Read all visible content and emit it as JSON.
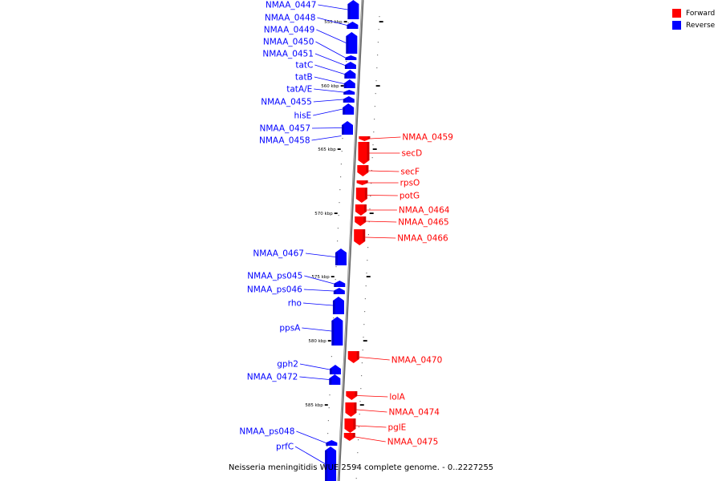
{
  "title": "Neisseria meningitidis WUE 2594 complete genome. - 0..2227255",
  "legend": [
    {
      "label": "Forward",
      "color": "#ff0000"
    },
    {
      "label": "Reverse",
      "color": "#0000ff"
    }
  ],
  "colors": {
    "forward": "#ff0000",
    "reverse": "#0000ff",
    "backbone": "#888888"
  },
  "ticks": [
    {
      "label": "555 kbp"
    },
    {
      "label": "560 kbp"
    },
    {
      "label": "565 kbp"
    },
    {
      "label": "570 kbp"
    },
    {
      "label": "575 kbp"
    },
    {
      "label": "580 kbp"
    },
    {
      "label": "585 kbp"
    }
  ],
  "genes": [
    {
      "name": "NMAA_0447",
      "strand": "reverse"
    },
    {
      "name": "NMAA_0448",
      "strand": "reverse"
    },
    {
      "name": "NMAA_0449",
      "strand": "reverse"
    },
    {
      "name": "NMAA_0450",
      "strand": "reverse"
    },
    {
      "name": "NMAA_0451",
      "strand": "reverse"
    },
    {
      "name": "tatC",
      "strand": "reverse"
    },
    {
      "name": "tatB",
      "strand": "reverse"
    },
    {
      "name": "tatA/E",
      "strand": "reverse"
    },
    {
      "name": "NMAA_0455",
      "strand": "reverse"
    },
    {
      "name": "hisE",
      "strand": "reverse"
    },
    {
      "name": "NMAA_0457",
      "strand": "reverse"
    },
    {
      "name": "NMAA_0458",
      "strand": "reverse"
    },
    {
      "name": "NMAA_0459",
      "strand": "forward"
    },
    {
      "name": "secD",
      "strand": "forward"
    },
    {
      "name": "secF",
      "strand": "forward"
    },
    {
      "name": "rpsO",
      "strand": "forward"
    },
    {
      "name": "potG",
      "strand": "forward"
    },
    {
      "name": "NMAA_0464",
      "strand": "forward"
    },
    {
      "name": "NMAA_0465",
      "strand": "forward"
    },
    {
      "name": "NMAA_0466",
      "strand": "forward"
    },
    {
      "name": "NMAA_0467",
      "strand": "reverse"
    },
    {
      "name": "NMAA_ps045",
      "strand": "reverse"
    },
    {
      "name": "NMAA_ps046",
      "strand": "reverse"
    },
    {
      "name": "rho",
      "strand": "reverse"
    },
    {
      "name": "ppsA",
      "strand": "reverse"
    },
    {
      "name": "NMAA_0470",
      "strand": "forward"
    },
    {
      "name": "gph2",
      "strand": "reverse"
    },
    {
      "name": "NMAA_0472",
      "strand": "reverse"
    },
    {
      "name": "lolA",
      "strand": "forward"
    },
    {
      "name": "NMAA_0474",
      "strand": "forward"
    },
    {
      "name": "pglE",
      "strand": "forward"
    },
    {
      "name": "NMAA_0475",
      "strand": "forward"
    },
    {
      "name": "NMAA_ps048",
      "strand": "reverse"
    },
    {
      "name": "prfC",
      "strand": "reverse"
    }
  ]
}
